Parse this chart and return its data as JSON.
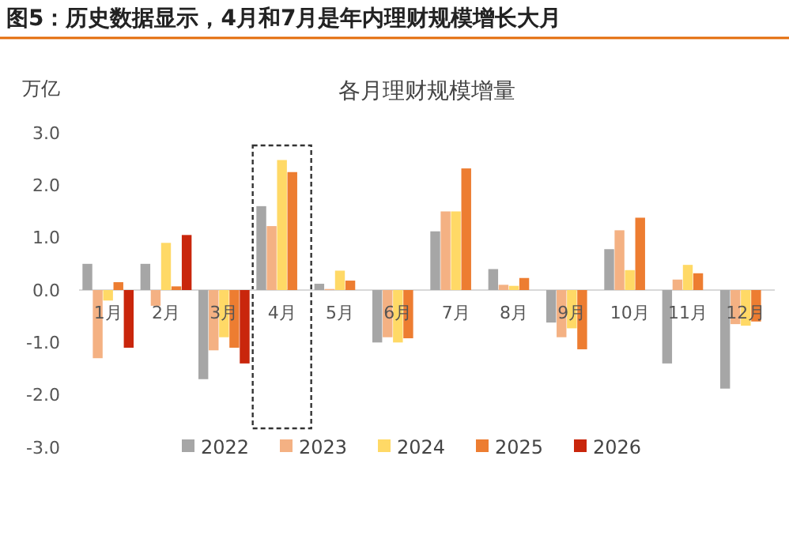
{
  "chart_data": {
    "type": "bar",
    "title": "图5：历史数据显示，4月和7月是年内理财规模增长大月",
    "subtitle": "各月理财规模增量",
    "ylabel": "万亿",
    "categories": [
      "1月",
      "2月",
      "3月",
      "4月",
      "5月",
      "6月",
      "7月",
      "8月",
      "9月",
      "10月",
      "11月",
      "12月"
    ],
    "series": [
      {
        "name": "2022",
        "color": "#a6a6a6",
        "values": [
          0.5,
          0.5,
          -1.7,
          1.6,
          0.12,
          -1.0,
          1.12,
          0.4,
          -0.62,
          0.78,
          -1.4,
          -1.88
        ]
      },
      {
        "name": "2023",
        "color": "#f4b183",
        "values": [
          -1.3,
          -0.3,
          -1.15,
          1.22,
          0.02,
          -0.9,
          1.5,
          0.1,
          -0.9,
          1.14,
          0.2,
          -0.65
        ]
      },
      {
        "name": "2024",
        "color": "#ffd966",
        "values": [
          -0.2,
          0.9,
          -0.9,
          2.48,
          0.37,
          -1.0,
          1.5,
          0.08,
          -0.73,
          0.38,
          0.48,
          -0.68
        ]
      },
      {
        "name": "2025",
        "color": "#ed7d31",
        "values": [
          0.15,
          0.07,
          -1.1,
          2.25,
          0.18,
          -0.92,
          2.32,
          0.23,
          -1.13,
          1.38,
          0.32,
          -0.6
        ]
      },
      {
        "name": "2026",
        "color": "#c9260c",
        "values": [
          -1.1,
          1.05,
          -1.4,
          null,
          null,
          null,
          null,
          null,
          null,
          null,
          null,
          null
        ]
      }
    ],
    "ylim": [
      -3,
      3
    ],
    "yticks": [
      {
        "value": 3,
        "label": "3.0"
      },
      {
        "value": 2,
        "label": "2.0"
      },
      {
        "value": 1,
        "label": "1.0"
      },
      {
        "value": 0,
        "label": "0.0"
      },
      {
        "value": -1,
        "label": "-1.0"
      },
      {
        "value": -2,
        "label": "-2.0"
      },
      {
        "value": -3,
        "label": "-3.0"
      }
    ],
    "grid": false,
    "legend": "bottom"
  }
}
